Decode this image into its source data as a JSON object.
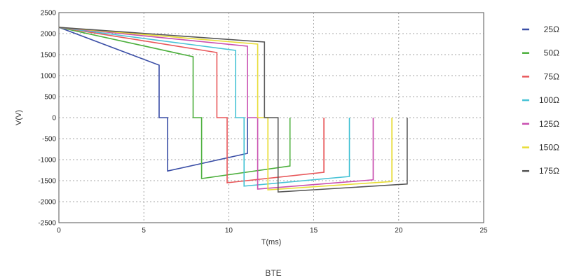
{
  "chart_data": {
    "type": "line",
    "title": "",
    "xlabel": "T(ms)",
    "ylabel": "V(V)",
    "caption": "BTE",
    "xlim": [
      0,
      25
    ],
    "ylim": [
      -2500,
      2500
    ],
    "xticks": [
      0,
      5,
      10,
      15,
      20,
      25
    ],
    "yticks": [
      2500,
      2000,
      1500,
      1000,
      500,
      0,
      -500,
      -1000,
      -1500,
      -2000,
      -2500
    ],
    "grid": true,
    "legend_position": "right",
    "series": [
      {
        "name": "25Ω",
        "color": "#3a4ea6",
        "x": [
          0,
          5.9,
          5.9,
          6.4,
          6.4,
          11.1,
          11.1
        ],
        "y": [
          2150,
          1250,
          0,
          0,
          -1270,
          -850,
          0
        ]
      },
      {
        "name": "50Ω",
        "color": "#4caf3c",
        "x": [
          0,
          7.9,
          7.9,
          8.4,
          8.4,
          13.6,
          13.6
        ],
        "y": [
          2150,
          1450,
          0,
          0,
          -1450,
          -1150,
          0
        ]
      },
      {
        "name": "75Ω",
        "color": "#e8575a",
        "x": [
          0,
          9.3,
          9.3,
          9.9,
          9.9,
          15.6,
          15.6
        ],
        "y": [
          2150,
          1550,
          0,
          0,
          -1550,
          -1300,
          0
        ]
      },
      {
        "name": "100Ω",
        "color": "#48c3d6",
        "x": [
          0,
          10.4,
          10.4,
          10.9,
          10.9,
          17.1,
          17.1
        ],
        "y": [
          2150,
          1600,
          0,
          0,
          -1630,
          -1400,
          0
        ]
      },
      {
        "name": "125Ω",
        "color": "#c94fb0",
        "x": [
          0,
          11.1,
          11.1,
          11.7,
          11.7,
          18.5,
          18.5
        ],
        "y": [
          2150,
          1700,
          0,
          0,
          -1700,
          -1480,
          0
        ]
      },
      {
        "name": "150Ω",
        "color": "#e8dd36",
        "x": [
          0,
          11.7,
          11.7,
          12.3,
          12.3,
          19.6,
          19.6
        ],
        "y": [
          2150,
          1750,
          0,
          0,
          -1720,
          -1520,
          0
        ]
      },
      {
        "name": "175Ω",
        "color": "#555555",
        "x": [
          0,
          12.1,
          12.1,
          12.9,
          12.9,
          20.5,
          20.5
        ],
        "y": [
          2150,
          1800,
          0,
          0,
          -1770,
          -1580,
          0
        ]
      }
    ]
  }
}
